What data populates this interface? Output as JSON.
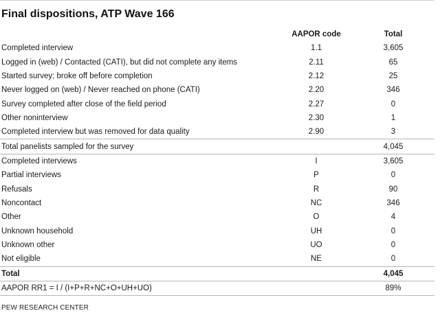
{
  "title": "Final dispositions, ATP Wave 166",
  "headers": {
    "label": "",
    "code": "AAPOR code",
    "total": "Total"
  },
  "rows": [
    {
      "label": "Completed interview",
      "code": "1.1",
      "total": "3,605"
    },
    {
      "label": "Logged in (web) / Contacted (CATI), but did not complete any items",
      "code": "2.11",
      "total": "65"
    },
    {
      "label": "Started survey; broke off before completion",
      "code": "2.12",
      "total": "25"
    },
    {
      "label": "Never logged on (web) / Never reached on phone (CATI)",
      "code": "2.20",
      "total": "346"
    },
    {
      "label": "Survey completed after close of the field period",
      "code": "2.27",
      "total": "0"
    },
    {
      "label": "Other noninterview",
      "code": "2.30",
      "total": "1"
    },
    {
      "label": "Completed interview but was removed for data quality",
      "code": "2.90",
      "total": "3"
    },
    {
      "label": "Total panelists sampled for the survey",
      "code": "",
      "total": "4,045"
    },
    {
      "label": "Completed interviews",
      "code": "I",
      "total": "3,605"
    },
    {
      "label": "Partial interviews",
      "code": "P",
      "total": "0"
    },
    {
      "label": "Refusals",
      "code": "R",
      "total": "90"
    },
    {
      "label": "Noncontact",
      "code": "NC",
      "total": "346"
    },
    {
      "label": "Other",
      "code": "O",
      "total": "4"
    },
    {
      "label": "Unknown household",
      "code": "UH",
      "total": "0"
    },
    {
      "label": "Unknown other",
      "code": "UO",
      "total": "0"
    },
    {
      "label": "Not eligible",
      "code": "NE",
      "total": "0"
    },
    {
      "label": "Total",
      "code": "",
      "total": "4,045"
    },
    {
      "label": "AAPOR RR1 = I / (I+P+R+NC+O+UH+UO)",
      "code": "",
      "total": "89%"
    }
  ],
  "source": "PEW RESEARCH CENTER"
}
